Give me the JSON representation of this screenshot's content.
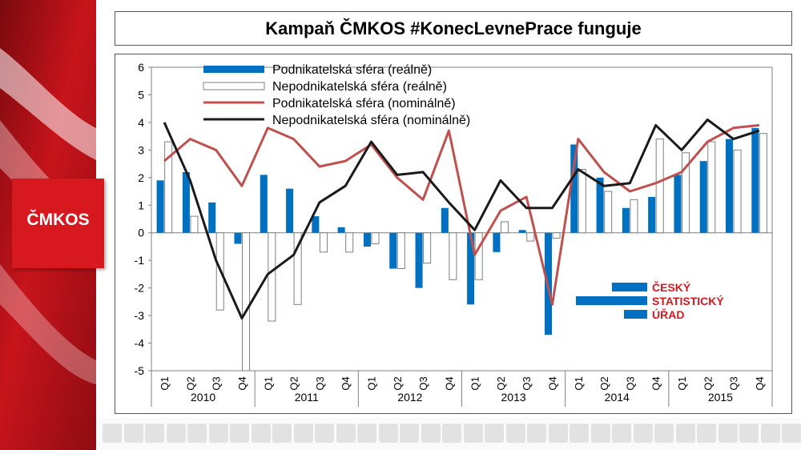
{
  "header": {
    "title": "Kampaň ČMKOS #KonecLevnePrace funguje"
  },
  "logo": {
    "text": "ČMKOS"
  },
  "colors": {
    "blue": "#0070c0",
    "red": "#c0504d",
    "black": "#1a1a1a",
    "brand_red": "#d7191f"
  },
  "chart_data": {
    "type": "bar",
    "title": "",
    "xlabel": "",
    "ylabel": "",
    "ylim": [
      -5,
      6
    ],
    "yticks": [
      "6",
      "5",
      "4",
      "3",
      "2",
      "1",
      "0",
      "-1",
      "-2",
      "-3",
      "-4",
      "-5"
    ],
    "quarters": [
      "Q1",
      "Q2",
      "Q3",
      "Q4",
      "Q1",
      "Q2",
      "Q3",
      "Q4",
      "Q1",
      "Q2",
      "Q3",
      "Q4",
      "Q1",
      "Q2",
      "Q3",
      "Q4",
      "Q1",
      "Q2",
      "Q3",
      "Q4",
      "Q1",
      "Q2",
      "Q3",
      "Q4"
    ],
    "years": [
      "2010",
      "2011",
      "2012",
      "2013",
      "2014",
      "2015"
    ],
    "legend_position": "top-left",
    "series": [
      {
        "name": "Podnikatelská sféra (reálně)",
        "kind": "bar",
        "color": "#0070c0",
        "values": [
          1.9,
          2.2,
          1.1,
          -0.4,
          2.1,
          1.6,
          0.6,
          0.2,
          -0.5,
          -1.3,
          -2.0,
          0.9,
          -2.6,
          -0.7,
          0.1,
          -3.7,
          3.2,
          2.0,
          0.9,
          1.3,
          2.1,
          2.6,
          3.4,
          3.8
        ]
      },
      {
        "name": "Nepodnikatelská sféra (reálně)",
        "kind": "bar-outline",
        "color": "#7f7f7f",
        "values": [
          3.3,
          0.6,
          -2.8,
          -5.0,
          -3.2,
          -2.6,
          -0.7,
          -0.7,
          -0.4,
          -1.3,
          -1.1,
          -1.7,
          -1.7,
          0.4,
          -0.3,
          -0.2,
          2.3,
          1.5,
          1.2,
          3.4,
          2.9,
          3.3,
          3.0,
          3.6
        ]
      },
      {
        "name": "Podnikatelská sféra (nominálně)",
        "kind": "line",
        "color": "#c0504d",
        "values": [
          2.6,
          3.4,
          3.0,
          1.7,
          3.8,
          3.4,
          2.4,
          2.6,
          3.2,
          2.0,
          1.2,
          3.7,
          -0.8,
          0.8,
          1.3,
          -2.6,
          3.4,
          2.2,
          1.5,
          1.8,
          2.2,
          3.3,
          3.8,
          3.9
        ]
      },
      {
        "name": "Nepodnikatelská sféra (nominálně)",
        "kind": "line",
        "color": "#1a1a1a",
        "values": [
          4.0,
          1.9,
          -1.0,
          -3.1,
          -1.5,
          -0.8,
          1.1,
          1.7,
          3.3,
          2.1,
          2.2,
          1.1,
          0.1,
          1.9,
          0.9,
          0.9,
          2.3,
          1.7,
          1.8,
          3.9,
          3.0,
          4.1,
          3.4,
          3.7
        ]
      }
    ],
    "annotation": {
      "lines": [
        "ČESKÝ",
        "STATISTICKÝ",
        "ÚŘAD"
      ],
      "color": "#d7191f",
      "bar_color": "#0070c0"
    }
  }
}
